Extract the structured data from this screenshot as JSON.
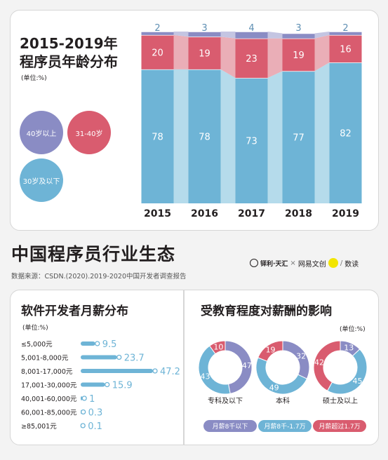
{
  "main_title": "中国程序员行业生态",
  "source": "数据来源：CSDN.(2020).2019-2020中国开发者调查报告",
  "logos": {
    "brand_a": "铎利·天汇",
    "cross": "×",
    "brand_b": "网易文创",
    "brand_c": "数读"
  },
  "colors": {
    "blue": "#6eb4d6",
    "red": "#d95c6f",
    "purple": "#8a8cc4",
    "blue_light": "#b5dbeb",
    "red_light": "#eaaeb7",
    "purple_light": "#c4c5e2"
  },
  "age_section": {
    "title_line1": "2015-2019年",
    "title_line2": "程序员年龄分布",
    "unit": "(单位:%)",
    "legend": [
      {
        "label": "40岁以上",
        "color": "#8a8cc4"
      },
      {
        "label": "31-40岁",
        "color": "#d95c6f"
      },
      {
        "label": "30岁及以下",
        "color": "#6eb4d6"
      }
    ]
  },
  "salary_section": {
    "title": "软件开发者月薪分布",
    "unit": "(单位:%)"
  },
  "edu_section": {
    "title": "受教育程度对薪酬的影响",
    "unit": "(单位:%)",
    "legend": [
      {
        "label": "月薪8千以下",
        "color": "#8a8cc4"
      },
      {
        "label": "月薪8千-1.7万",
        "color": "#6eb4d6"
      },
      {
        "label": "月薪超过1.7万",
        "color": "#d95c6f"
      }
    ]
  },
  "chart_data": [
    {
      "type": "bar",
      "stacked": true,
      "categories": [
        "2015",
        "2016",
        "2017",
        "2018",
        "2019"
      ],
      "series": [
        {
          "name": "30岁及以下",
          "values": [
            78,
            78,
            73,
            77,
            82
          ],
          "color": "#6eb4d6"
        },
        {
          "name": "31-40岁",
          "values": [
            20,
            19,
            23,
            19,
            16
          ],
          "color": "#d95c6f"
        },
        {
          "name": "40岁以上",
          "values": [
            2,
            3,
            4,
            3,
            2
          ],
          "color": "#8a8cc4"
        }
      ],
      "ylim": [
        0,
        100
      ]
    },
    {
      "type": "bar",
      "orientation": "horizontal",
      "categories": [
        "≤5,000元",
        "5,001-8,000元",
        "8,001-17,000元",
        "17,001-30,000元",
        "40,001-60,000元",
        "60,001-85,000元",
        "≥85,001元"
      ],
      "values": [
        9.5,
        23.7,
        47.2,
        15.9,
        1,
        0.3,
        0.1
      ],
      "color": "#6eb4d6"
    },
    {
      "type": "pie",
      "donut": true,
      "charts": [
        {
          "name": "专科及以下",
          "values": [
            {
              "label": "月薪8千以下",
              "value": 47,
              "color": "#8a8cc4"
            },
            {
              "label": "月薪8千-1.7万",
              "value": 43,
              "color": "#6eb4d6"
            },
            {
              "label": "月薪超过1.7万",
              "value": 10,
              "color": "#d95c6f"
            }
          ]
        },
        {
          "name": "本科",
          "values": [
            {
              "label": "月薪8千以下",
              "value": 32,
              "color": "#8a8cc4"
            },
            {
              "label": "月薪8千-1.7万",
              "value": 49,
              "color": "#6eb4d6"
            },
            {
              "label": "月薪超过1.7万",
              "value": 19,
              "color": "#d95c6f"
            }
          ]
        },
        {
          "name": "硕士及以上",
          "values": [
            {
              "label": "月薪8千以下",
              "value": 13,
              "color": "#8a8cc4"
            },
            {
              "label": "月薪8千-1.7万",
              "value": 45,
              "color": "#6eb4d6"
            },
            {
              "label": "月薪超过1.7万",
              "value": 42,
              "color": "#d95c6f"
            }
          ]
        }
      ]
    }
  ]
}
